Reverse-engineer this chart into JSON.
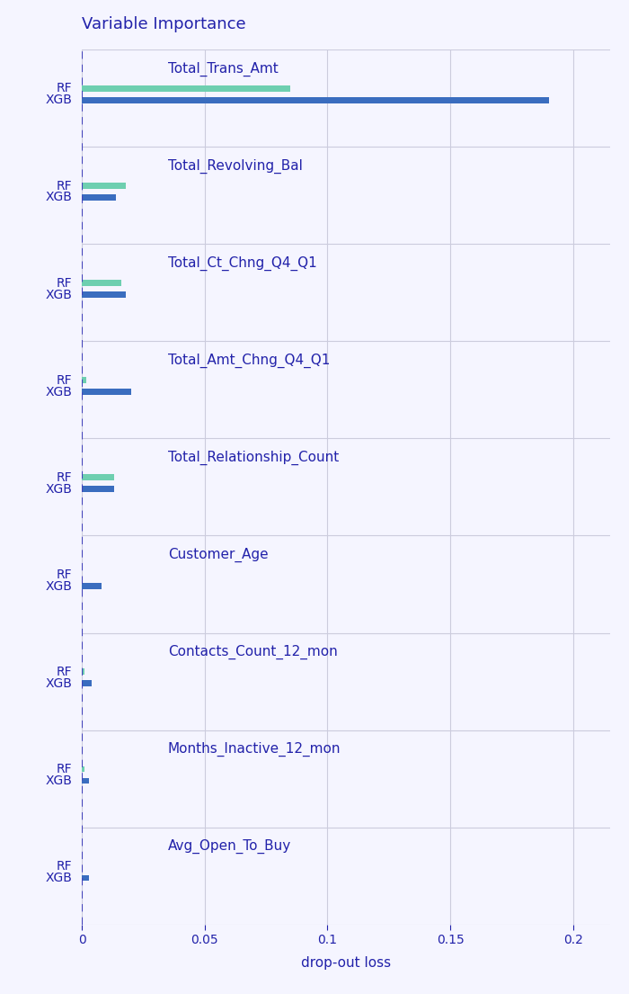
{
  "features": [
    "Total_Trans_Amt",
    "Total_Revolving_Bal",
    "Total_Ct_Chng_Q4_Q1",
    "Total_Amt_Chng_Q4_Q1",
    "Total_Relationship_Count",
    "Customer_Age",
    "Contacts_Count_12_mon",
    "Months_Inactive_12_mon",
    "Avg_Open_To_Buy"
  ],
  "rf_values": [
    0.085,
    0.018,
    0.016,
    0.002,
    0.013,
    0.0,
    0.001,
    0.001,
    0.0
  ],
  "xgb_values": [
    0.19,
    0.014,
    0.018,
    0.02,
    0.013,
    0.008,
    0.004,
    0.003,
    0.003
  ],
  "rf_color": "#6ecfb0",
  "xgb_color": "#3a6dbf",
  "title": "Variable Importance",
  "xlabel": "drop-out loss",
  "xlim": [
    0,
    0.215
  ],
  "xticks": [
    0,
    0.05,
    0.1,
    0.15,
    0.2
  ],
  "background_color": "#f5f5ff",
  "grid_color": "#ccccdd",
  "text_color": "#2222aa",
  "title_fontsize": 13,
  "label_fontsize": 10,
  "tick_fontsize": 10,
  "feature_label_fontsize": 11,
  "bar_height": 0.6,
  "dashed_line_color": "#4444bb"
}
